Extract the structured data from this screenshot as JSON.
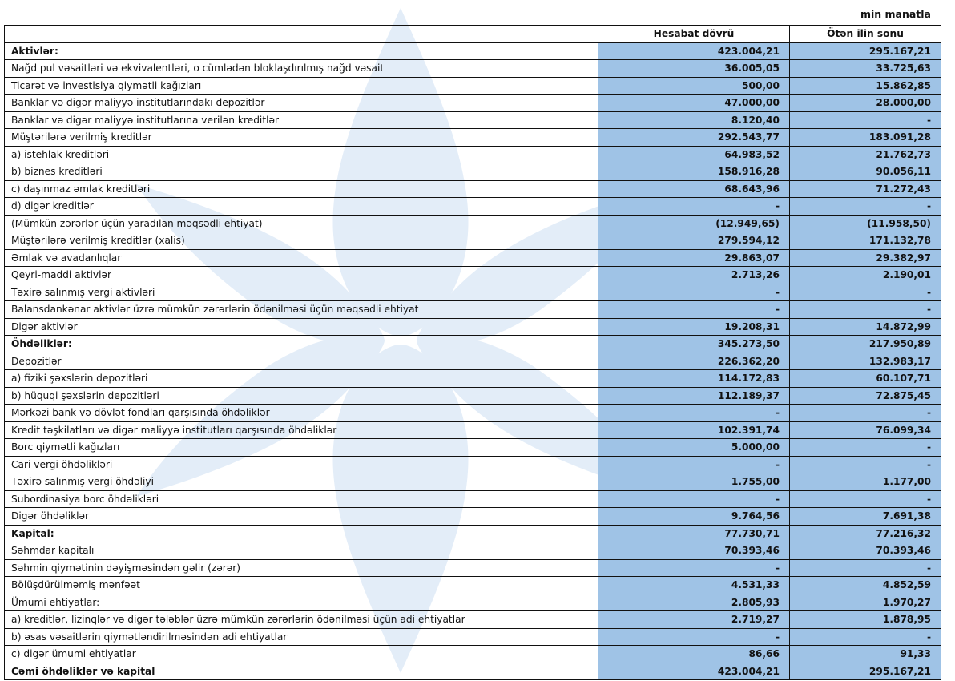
{
  "unit_label": "min manatla",
  "columns": [
    "",
    "Hesabat dövrü",
    "Ötən ilin sonu"
  ],
  "colors": {
    "value_cell_bg": "#9fc3e6",
    "watermark": "#dce8f5"
  },
  "rows": [
    {
      "label": "Aktivlər:",
      "bold": true,
      "v1": "423.004,21",
      "v2": "295.167,21"
    },
    {
      "label": "Nağd pul vəsaitləri və  ekvivalentləri, o cümlədən bloklaşdırılmış nağd vəsait",
      "v1": "36.005,05",
      "v2": "33.725,63"
    },
    {
      "label": "Ticarət və investisiya qiymətli kağızları",
      "v1": "500,00",
      "v2": "15.862,85"
    },
    {
      "label": "Banklar və digər maliyyə institutlarındakı depozitlər",
      "v1": "47.000,00",
      "v2": "28.000,00"
    },
    {
      "label": "Banklar və digər maliyyə institutlarına verilən kreditlər",
      "v1": "8.120,40",
      "v2": "-"
    },
    {
      "label": "Müştərilərə verilmiş kreditlər",
      "v1": "292.543,77",
      "v2": "183.091,28"
    },
    {
      "label": "a) istehlak kreditləri",
      "v1": "64.983,52",
      "v2": "21.762,73"
    },
    {
      "label": "b) biznes kreditləri",
      "v1": "158.916,28",
      "v2": "90.056,11"
    },
    {
      "label": "c) daşınmaz əmlak kreditləri",
      "v1": "68.643,96",
      "v2": "71.272,43"
    },
    {
      "label": "d) digər kreditlər",
      "v1": "-",
      "v2": "-"
    },
    {
      "label": "(Mümkün zərərlər üçün yaradılan məqsədli ehtiyat)",
      "v1": "(12.949,65)",
      "v2": "(11.958,50)"
    },
    {
      "label": "Müştərilərə verilmiş kreditlər (xalis)",
      "v1": "279.594,12",
      "v2": "171.132,78"
    },
    {
      "label": "Əmlak və avadanlıqlar",
      "v1": "29.863,07",
      "v2": "29.382,97"
    },
    {
      "label": "Qeyri-maddi aktivlər",
      "v1": "2.713,26",
      "v2": "2.190,01"
    },
    {
      "label": "Təxirə salınmış vergi aktivləri",
      "v1": "-",
      "v2": "-"
    },
    {
      "label": "Balansdankənar aktivlər üzrə mümkün zərərlərin ödənilməsi üçün məqsədli ehtiyat",
      "v1": "-",
      "v2": "-"
    },
    {
      "label": "Digər aktivlər",
      "v1": "19.208,31",
      "v2": "14.872,99"
    },
    {
      "label": "Öhdəliklər:",
      "bold": true,
      "v1": "345.273,50",
      "v2": "217.950,89"
    },
    {
      "label": "Depozitlər",
      "v1": "226.362,20",
      "v2": "132.983,17"
    },
    {
      "label": "a) fiziki şəxslərin depozitləri",
      "v1": "114.172,83",
      "v2": "60.107,71"
    },
    {
      "label": "b) hüquqi şəxslərin depozitləri",
      "v1": "112.189,37",
      "v2": "72.875,45"
    },
    {
      "label": "Mərkəzi bank və dövlət fondları qarşısında öhdəliklər",
      "v1": "-",
      "v2": "-"
    },
    {
      "label": "Kredit təşkilatları və digər maliyyə institutları qarşısında öhdəliklər",
      "v1": "102.391,74",
      "v2": "76.099,34"
    },
    {
      "label": "Borc qiymətli kağızları",
      "v1": "5.000,00",
      "v2": "-"
    },
    {
      "label": "Cari vergi öhdəlikləri",
      "v1": "-",
      "v2": "-"
    },
    {
      "label": "Təxirə salınmış vergi öhdəliyi",
      "v1": "1.755,00",
      "v2": "1.177,00"
    },
    {
      "label": "Subordinasiya borc öhdəlikləri",
      "v1": "-",
      "v2": "-"
    },
    {
      "label": "Digər öhdəliklər",
      "v1": "9.764,56",
      "v2": "7.691,38"
    },
    {
      "label": "Kapital:",
      "bold": true,
      "v1": "77.730,71",
      "v2": "77.216,32"
    },
    {
      "label": "Səhmdar kapitalı",
      "v1": "70.393,46",
      "v2": "70.393,46"
    },
    {
      "label": "Səhmin qiymətinin dəyişməsindən gəlir (zərər)",
      "v1": "-",
      "v2": "-"
    },
    {
      "label": "Bölüşdürülməmiş mənfəət",
      "v1": "4.531,33",
      "v2": "4.852,59"
    },
    {
      "label": "Ümumi ehtiyatlar:",
      "v1": "2.805,93",
      "v2": "1.970,27"
    },
    {
      "label": "a) kreditlər, lizinqlər və digər tələblər üzrə mümkün zərərlərin ödənilməsi üçün adi ehtiyatlar",
      "v1": "2.719,27",
      "v2": "1.878,95"
    },
    {
      "label": "b) əsas vəsaitlərin qiymətləndirilməsindən adi ehtiyatlar",
      "v1": "-",
      "v2": "-"
    },
    {
      "label": "c) digər ümumi ehtiyatlar",
      "v1": "86,66",
      "v2": "91,33"
    },
    {
      "label": "Cəmi öhdəliklər və kapital",
      "bold": true,
      "v1": "423.004,21",
      "v2": "295.167,21"
    }
  ]
}
